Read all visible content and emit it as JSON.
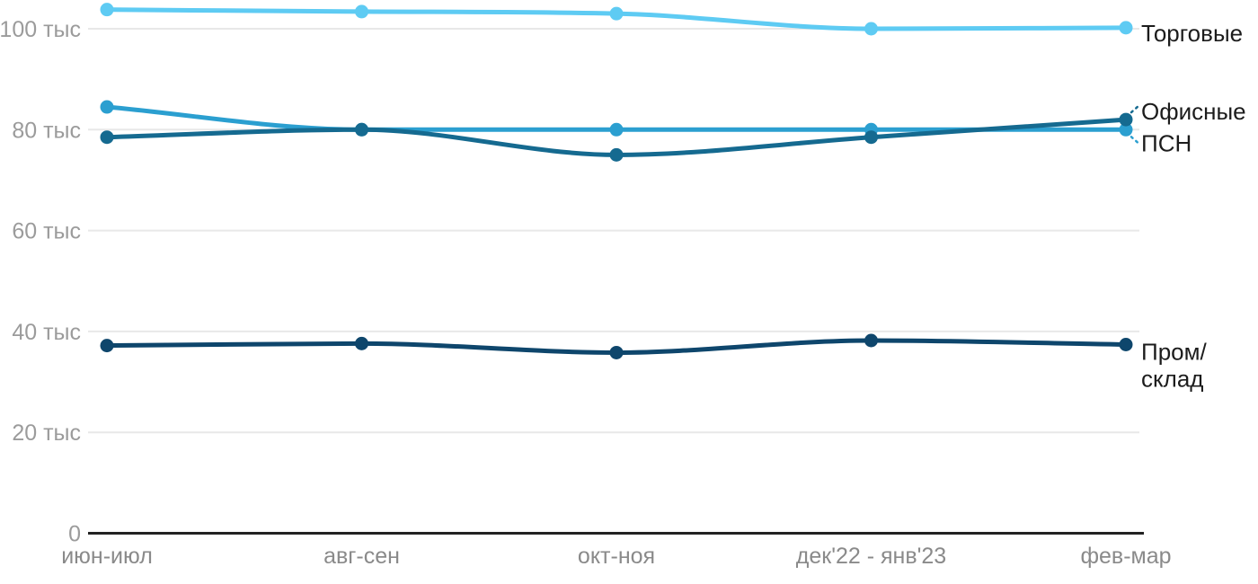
{
  "chart_data": {
    "type": "line",
    "title": "",
    "xlabel": "",
    "ylabel": "",
    "unit": "тыс",
    "categories": [
      "июн-июл",
      "авг-сен",
      "окт-ноя",
      "дек'22 - янв'23",
      "фев-мар"
    ],
    "yticks": [
      {
        "value": 0,
        "label": "0"
      },
      {
        "value": 20,
        "label": "20 тыс"
      },
      {
        "value": 40,
        "label": "40 тыс"
      },
      {
        "value": 60,
        "label": "60 тыс"
      },
      {
        "value": 80,
        "label": "80 тыс"
      },
      {
        "value": 100,
        "label": "100 тыс"
      }
    ],
    "ylim": [
      0,
      106
    ],
    "grid": "horizontal-only",
    "legend_position": "end-of-line-labels-right",
    "series": [
      {
        "name": "Торговые",
        "color": "#5ecbf3",
        "values": [
          103.8,
          103.4,
          103.0,
          100.0,
          100.2
        ],
        "label_lines": [
          "Торговые"
        ],
        "label_offset_y": 6,
        "leader": false
      },
      {
        "name": "ПСН",
        "color": "#2b9fd0",
        "values": [
          84.5,
          80.0,
          80.0,
          80.0,
          80.0
        ],
        "label_lines": [
          "ПСН"
        ],
        "label_offset_y": 15,
        "leader": true
      },
      {
        "name": "Офисные",
        "color": "#156a90",
        "values": [
          78.5,
          80.0,
          75.0,
          78.5,
          82.0
        ],
        "label_lines": [
          "Офисные"
        ],
        "label_offset_y": -9,
        "leader": true
      },
      {
        "name": "Пром/склад",
        "color": "#0e466c",
        "values": [
          37.2,
          37.6,
          35.8,
          38.2,
          37.4
        ],
        "label_lines": [
          "Пром/",
          "склад"
        ],
        "label_offset_y": 8,
        "leader": false
      }
    ],
    "colors": {
      "background": "#ffffff",
      "axis": "#222222",
      "gridline": "#e8e8e8",
      "ytick_text": "#9b9b9b",
      "xtick_text": "#8a8a8a",
      "series_label_text": "#1c1c1c"
    }
  }
}
